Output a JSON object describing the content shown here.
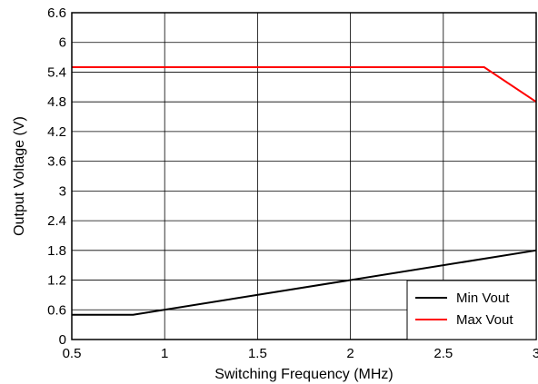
{
  "chart_data": {
    "type": "line",
    "xlabel": "Switching Frequency (MHz)",
    "ylabel": "Output Voltage (V)",
    "xlim": [
      0.5,
      3
    ],
    "ylim": [
      0,
      6.6
    ],
    "x_ticks": [
      "0.5",
      "1",
      "1.5",
      "2",
      "2.5",
      "3"
    ],
    "y_ticks": [
      "0",
      "0.6",
      "1.2",
      "1.8",
      "2.4",
      "3",
      "3.6",
      "4.2",
      "4.8",
      "5.4",
      "6",
      "6.6"
    ],
    "grid": true,
    "legend_position": "bottom-right",
    "series": [
      {
        "name": "Min Vout",
        "color": "#000000",
        "points": [
          [
            0.5,
            0.5
          ],
          [
            0.83,
            0.5
          ],
          [
            3.0,
            1.8
          ]
        ]
      },
      {
        "name": "Max Vout",
        "color": "#ff0000",
        "points": [
          [
            0.5,
            5.5
          ],
          [
            2.72,
            5.5
          ],
          [
            3.0,
            4.8
          ]
        ]
      }
    ]
  }
}
